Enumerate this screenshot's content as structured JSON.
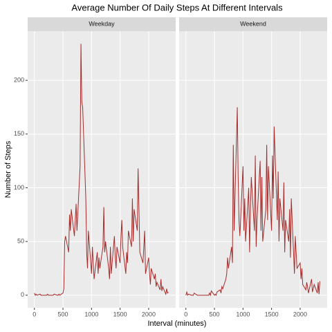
{
  "chart_data": {
    "type": "line",
    "facet": true,
    "title": "Average Number Of Daily Steps At Different Intervals",
    "xlabel": "Interval (minutes)",
    "ylabel": "Number of Steps",
    "xlim": [
      -117.75,
      2472.75
    ],
    "ylim": [
      -11.7,
      245.8
    ],
    "xticks": [
      0,
      500,
      1000,
      1500,
      2000
    ],
    "yticks": [
      0,
      50,
      100,
      150,
      200
    ],
    "grid": true,
    "x": [
      0,
      15,
      30,
      45,
      100,
      115,
      130,
      145,
      200,
      215,
      230,
      245,
      300,
      315,
      330,
      345,
      400,
      415,
      430,
      445,
      500,
      515,
      530,
      545,
      600,
      615,
      630,
      645,
      700,
      715,
      730,
      745,
      800,
      815,
      830,
      845,
      900,
      915,
      930,
      945,
      1000,
      1015,
      1030,
      1045,
      1100,
      1115,
      1130,
      1145,
      1200,
      1215,
      1230,
      1245,
      1300,
      1315,
      1330,
      1345,
      1400,
      1415,
      1430,
      1445,
      1500,
      1515,
      1530,
      1545,
      1600,
      1615,
      1630,
      1645,
      1700,
      1715,
      1730,
      1745,
      1800,
      1815,
      1830,
      1845,
      1900,
      1915,
      1930,
      1945,
      2000,
      2015,
      2030,
      2045,
      2100,
      2115,
      2130,
      2145,
      2200,
      2215,
      2230,
      2245,
      2300,
      2315,
      2330,
      2345
    ],
    "series": [
      {
        "name": "Weekday",
        "color": "#a52a2a",
        "values": [
          2,
          0,
          1,
          0,
          1,
          0,
          0,
          0,
          0,
          0,
          1,
          0,
          0,
          0,
          0,
          1,
          0,
          0,
          1,
          0,
          2,
          6,
          50,
          55,
          40,
          75,
          60,
          80,
          55,
          70,
          85,
          60,
          120,
          234,
          180,
          175,
          90,
          40,
          25,
          60,
          20,
          45,
          30,
          15,
          40,
          20,
          35,
          25,
          45,
          82,
          40,
          50,
          25,
          15,
          45,
          20,
          55,
          35,
          25,
          45,
          30,
          55,
          70,
          45,
          20,
          40,
          30,
          60,
          45,
          90,
          50,
          80,
          60,
          118,
          80,
          40,
          30,
          45,
          60,
          20,
          35,
          20,
          10,
          25,
          15,
          20,
          8,
          12,
          5,
          15,
          4,
          8,
          1,
          6,
          2,
          3
        ]
      },
      {
        "name": "Weekend",
        "color": "#a52a2a",
        "values": [
          0,
          3,
          0,
          1,
          0,
          0,
          0,
          2,
          0,
          0,
          0,
          0,
          0,
          0,
          0,
          0,
          0,
          2,
          0,
          4,
          0,
          1,
          0,
          3,
          5,
          2,
          8,
          6,
          15,
          20,
          35,
          25,
          45,
          30,
          140,
          60,
          175,
          110,
          70,
          55,
          120,
          60,
          90,
          50,
          100,
          40,
          80,
          110,
          60,
          130,
          45,
          70,
          125,
          60,
          110,
          50,
          80,
          140,
          70,
          120,
          60,
          130,
          90,
          157,
          70,
          115,
          50,
          90,
          60,
          105,
          40,
          70,
          50,
          80,
          35,
          90,
          20,
          55,
          40,
          25,
          30,
          15,
          25,
          10,
          5,
          12,
          8,
          2,
          15,
          3,
          6,
          10,
          2,
          12,
          1,
          13
        ]
      }
    ]
  }
}
